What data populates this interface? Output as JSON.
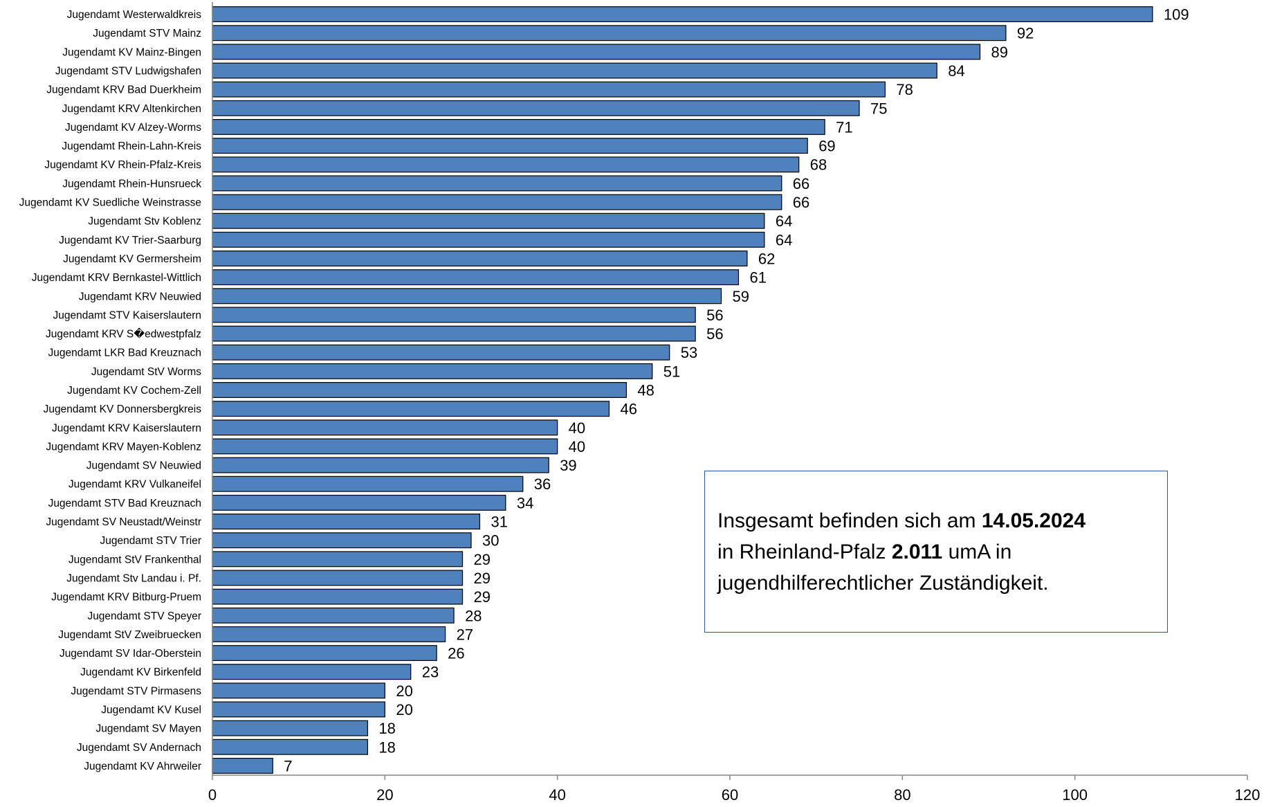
{
  "chart_data": {
    "type": "bar",
    "orientation": "horizontal",
    "categories": [
      "Jugendamt Westerwaldkreis",
      "Jugendamt STV Mainz",
      "Jugendamt KV Mainz-Bingen",
      "Jugendamt STV Ludwigshafen",
      "Jugendamt KRV Bad Duerkheim",
      "Jugendamt KRV Altenkirchen",
      "Jugendamt KV Alzey-Worms",
      "Jugendamt Rhein-Lahn-Kreis",
      "Jugendamt KV Rhein-Pfalz-Kreis",
      "Jugendamt Rhein-Hunsrueck",
      "Jugendamt KV Suedliche Weinstrasse",
      "Jugendamt Stv Koblenz",
      "Jugendamt KV Trier-Saarburg",
      "Jugendamt KV Germersheim",
      "Jugendamt KRV Bernkastel-Wittlich",
      "Jugendamt KRV Neuwied",
      "Jugendamt STV Kaiserslautern",
      "Jugendamt KRV S�edwestpfalz",
      "Jugendamt LKR Bad Kreuznach",
      "Jugendamt StV Worms",
      "Jugendamt KV Cochem-Zell",
      "Jugendamt KV Donnersbergkreis",
      "Jugendamt KRV Kaiserslautern",
      "Jugendamt KRV Mayen-Koblenz",
      "Jugendamt SV Neuwied",
      "Jugendamt KRV Vulkaneifel",
      "Jugendamt STV Bad Kreuznach",
      "Jugendamt SV Neustadt/Weinstr",
      "Jugendamt STV Trier",
      "Jugendamt StV Frankenthal",
      "Jugendamt Stv Landau i. Pf.",
      "Jugendamt KRV Bitburg-Pruem",
      "Jugendamt STV Speyer",
      "Jugendamt StV Zweibruecken",
      "Jugendamt SV Idar-Oberstein",
      "Jugendamt KV Birkenfeld",
      "Jugendamt STV Pirmasens",
      "Jugendamt KV Kusel",
      "Jugendamt SV Mayen",
      "Jugendamt SV Andernach",
      "Jugendamt KV Ahrweiler"
    ],
    "values": [
      109,
      92,
      89,
      84,
      78,
      75,
      71,
      69,
      68,
      66,
      66,
      64,
      64,
      62,
      61,
      59,
      56,
      56,
      53,
      51,
      48,
      46,
      40,
      40,
      39,
      36,
      34,
      31,
      30,
      29,
      29,
      29,
      28,
      27,
      26,
      23,
      20,
      20,
      18,
      18,
      7
    ],
    "xlim": [
      0,
      120
    ],
    "xticks": [
      0,
      20,
      40,
      60,
      80,
      100,
      120
    ],
    "title": "",
    "xlabel": "",
    "ylabel": "",
    "grid": false,
    "legend": "none",
    "bar_color": "#4f81bd",
    "bar_edge_color": "#000000"
  },
  "annotation": {
    "line1_prefix": "Insgesamt befinden sich am ",
    "line1_date": "14.05.2024",
    "line2_prefix": "in Rheinland-Pfalz ",
    "line2_count": "2.011",
    "line2_suffix": " umA in",
    "line3": "jugendhilferechtlicher Zuständigkeit."
  }
}
